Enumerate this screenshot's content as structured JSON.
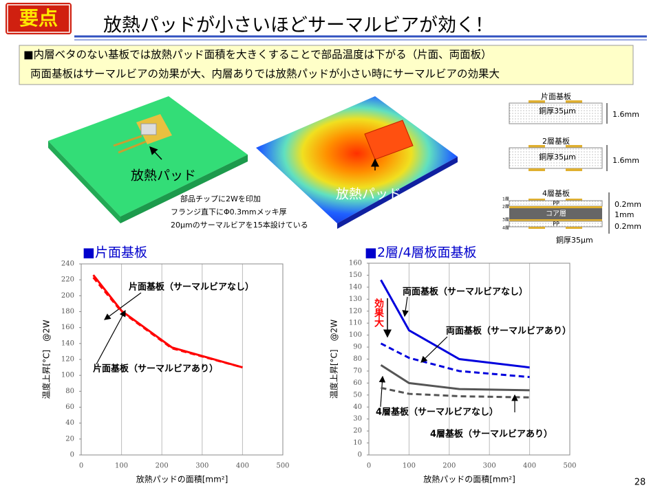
{
  "header": {
    "badge": "要点",
    "title": "放熱パッドが小さいほどサーマルビアが効く！"
  },
  "summary": [
    "■内層ベタのない基板では放熱パッド面積を大きくすることで部品温度は下がる（片面、両面板）",
    "両面基板はサーマルビアの効果が大、内層ありでは放熱パッドが小さい時にサーマルビアの効果大"
  ],
  "illustrations": {
    "left_label": "放熱パッド",
    "right_label": "放熱パッド",
    "note": [
      "部品チップに2Wを印加",
      "フランジ直下にΦ0.3mmメッキ厚",
      "20μmのサーマルビアを15本設けている"
    ]
  },
  "stackups": [
    {
      "title": "片面基板",
      "copper": "銅厚35μm",
      "thickness": "1.6mm"
    },
    {
      "title": "2層基板",
      "copper": "銅厚35μm",
      "thickness": "1.6mm"
    },
    {
      "title": "4層基板",
      "layers": [
        "1層",
        "2層",
        "3層",
        "4層"
      ],
      "materials": [
        "PP",
        "コア層",
        "PP"
      ],
      "thicknesses": [
        "0.2mm",
        "1mm",
        "0.2mm"
      ],
      "copper": "銅厚35μm"
    }
  ],
  "chart_data": [
    {
      "type": "line",
      "title": "■片面基板",
      "x_label": "放熱パッドの面積[mm²]",
      "y_label": "温度上昇[°C]　@2W",
      "xlim": [
        0,
        500
      ],
      "xticks": [
        0,
        100,
        200,
        300,
        400,
        500
      ],
      "ylim": [
        0,
        240
      ],
      "yticks": [
        0,
        20,
        40,
        60,
        80,
        100,
        120,
        140,
        160,
        180,
        200,
        220,
        240
      ],
      "grid": true,
      "x": [
        30,
        100,
        225,
        400
      ],
      "series": [
        {
          "name": "片面基板（サーマルビアなし）",
          "color": "#ff0000",
          "style": "solid",
          "values": [
            226,
            181,
            135,
            110
          ]
        },
        {
          "name": "片面基板（サーマルビアあり）",
          "color": "#ff0000",
          "style": "dashed",
          "values": [
            223,
            180,
            134,
            110
          ]
        }
      ]
    },
    {
      "type": "line",
      "title": "■2層/4層板面基板",
      "x_label": "放熱パッドの面積[mm²]",
      "y_label": "温度上昇[°C]　@2W",
      "annotation": "効果大",
      "xlim": [
        0,
        500
      ],
      "xticks": [
        0,
        100,
        200,
        300,
        400,
        500
      ],
      "ylim": [
        0,
        160
      ],
      "yticks": [
        0,
        10,
        20,
        30,
        40,
        50,
        60,
        70,
        80,
        90,
        100,
        110,
        120,
        130,
        140,
        150,
        160
      ],
      "grid": true,
      "x": [
        30,
        100,
        225,
        400
      ],
      "series": [
        {
          "name": "両面基板（サーマルビアなし）",
          "color": "#0000dd",
          "style": "solid",
          "values": [
            146,
            104,
            80,
            73
          ]
        },
        {
          "name": "両面基板（サーマルビアあり）",
          "color": "#0000dd",
          "style": "dashed",
          "values": [
            93,
            81,
            70,
            65
          ]
        },
        {
          "name": "4層基板（サーマルビアなし）",
          "color": "#555555",
          "style": "solid",
          "values": [
            75,
            60,
            55,
            54
          ]
        },
        {
          "name": "4層基板（サーマルビアあり）",
          "color": "#555555",
          "style": "dashed",
          "values": [
            56,
            51,
            49,
            48
          ]
        }
      ]
    }
  ],
  "page_number": "28"
}
